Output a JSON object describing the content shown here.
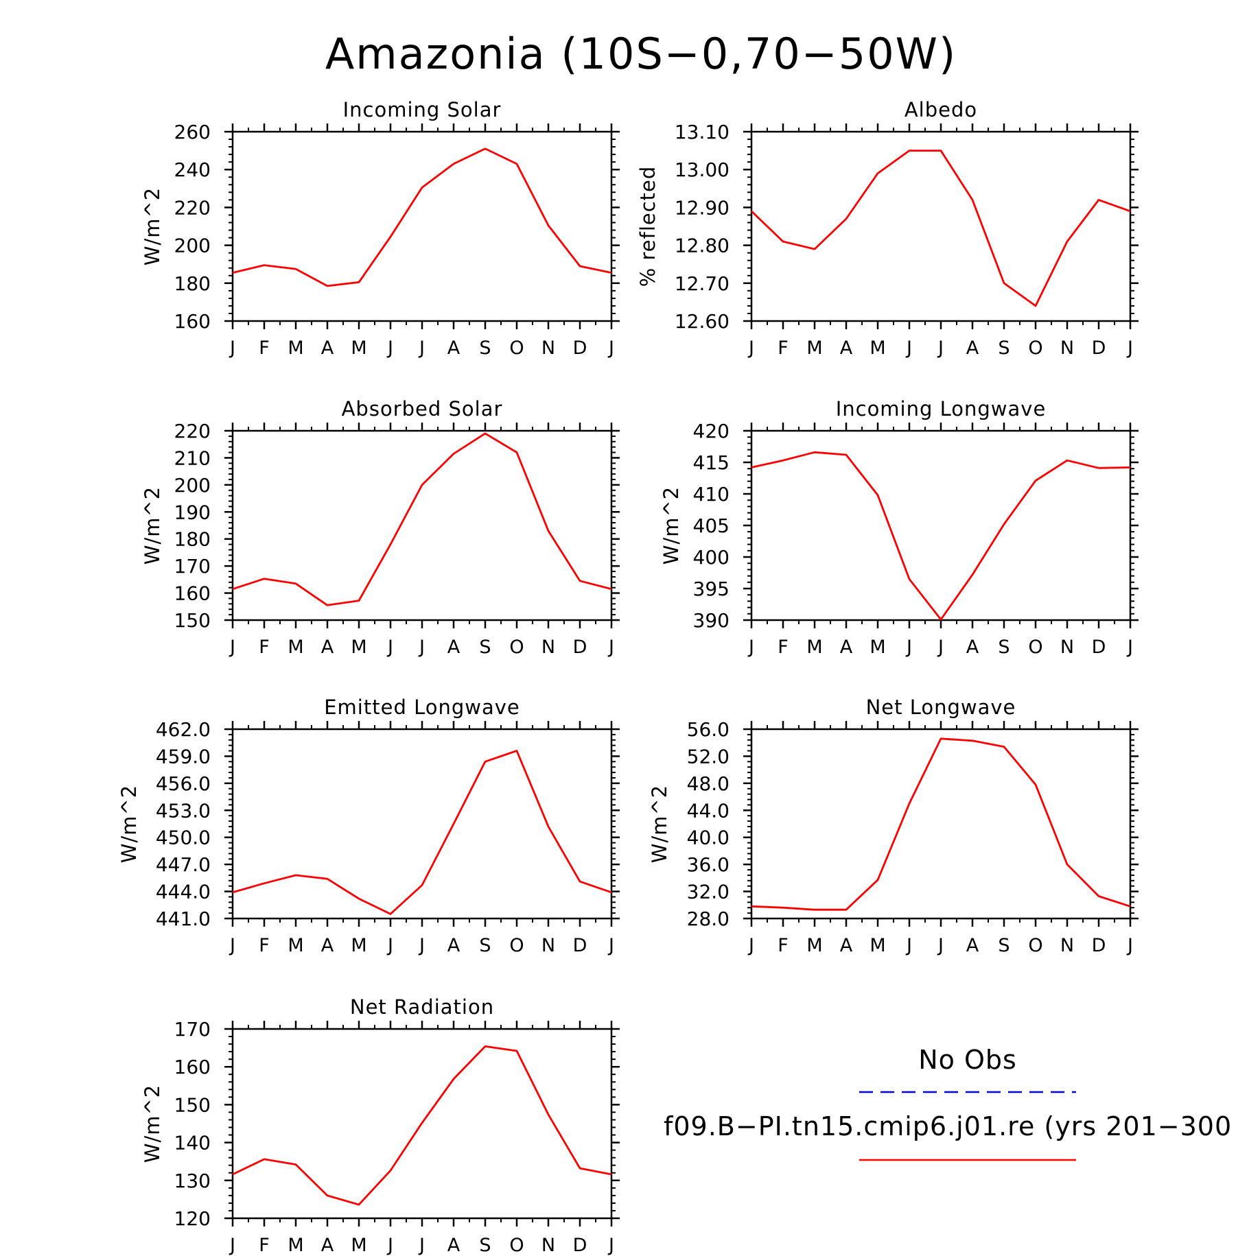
{
  "figure": {
    "title": "Amazonia (10S−0,70−50W)"
  },
  "legend": {
    "entries": [
      {
        "label": "No Obs",
        "color": "#0000ff",
        "style": "dashed"
      },
      {
        "label": "f09.B−PI.tn15.cmip6.j01.re (yrs 201−300",
        "color": "#ff0000",
        "style": "solid"
      }
    ]
  },
  "chart_data": [
    {
      "type": "line",
      "title": "Incoming Solar",
      "ylabel": "W/m^2",
      "x": [
        "J",
        "F",
        "M",
        "A",
        "M",
        "J",
        "J",
        "A",
        "S",
        "O",
        "N",
        "D",
        "J"
      ],
      "ylim": [
        160,
        260
      ],
      "yticks": [
        "160",
        "180",
        "200",
        "220",
        "240",
        "260"
      ],
      "series": [
        {
          "color": "#ff0000",
          "values": [
            185.5,
            189.5,
            187.5,
            178.5,
            180.5,
            204.5,
            230.5,
            243,
            251,
            243,
            210.5,
            189,
            185.5
          ]
        }
      ]
    },
    {
      "type": "line",
      "title": "Albedo",
      "ylabel": "% reflected",
      "x": [
        "J",
        "F",
        "M",
        "A",
        "M",
        "J",
        "J",
        "A",
        "S",
        "O",
        "N",
        "D",
        "J"
      ],
      "ylim": [
        12.6,
        13.1
      ],
      "yticks": [
        "12.60",
        "12.70",
        "12.80",
        "12.90",
        "13.00",
        "13.10"
      ],
      "series": [
        {
          "color": "#ff0000",
          "values": [
            12.89,
            12.81,
            12.79,
            12.87,
            12.99,
            13.05,
            13.05,
            12.92,
            12.7,
            12.64,
            12.81,
            12.92,
            12.89
          ]
        }
      ]
    },
    {
      "type": "line",
      "title": "Absorbed Solar",
      "ylabel": "W/m^2",
      "x": [
        "J",
        "F",
        "M",
        "A",
        "M",
        "J",
        "J",
        "A",
        "S",
        "O",
        "N",
        "D",
        "J"
      ],
      "ylim": [
        150,
        220
      ],
      "yticks": [
        "150",
        "160",
        "170",
        "180",
        "190",
        "200",
        "210",
        "220"
      ],
      "series": [
        {
          "color": "#ff0000",
          "values": [
            161.5,
            165.3,
            163.5,
            155.5,
            157.2,
            178,
            200,
            211.5,
            219,
            212,
            183,
            164.5,
            161.5
          ]
        }
      ]
    },
    {
      "type": "line",
      "title": "Incoming Longwave",
      "ylabel": "W/m^2",
      "x": [
        "J",
        "F",
        "M",
        "A",
        "M",
        "J",
        "J",
        "A",
        "S",
        "O",
        "N",
        "D",
        "J"
      ],
      "ylim": [
        390,
        420
      ],
      "yticks": [
        "390",
        "395",
        "400",
        "405",
        "410",
        "415",
        "420"
      ],
      "series": [
        {
          "color": "#ff0000",
          "values": [
            414.2,
            415.3,
            416.6,
            416.2,
            409.8,
            396.5,
            390.1,
            397.2,
            405.2,
            412.1,
            415.3,
            414.1,
            414.2
          ]
        }
      ]
    },
    {
      "type": "line",
      "title": "Emitted Longwave",
      "ylabel": "W/m^2",
      "x": [
        "J",
        "F",
        "M",
        "A",
        "M",
        "J",
        "J",
        "A",
        "S",
        "O",
        "N",
        "D",
        "J"
      ],
      "ylim": [
        441,
        462
      ],
      "yticks": [
        "441.0",
        "444.0",
        "447.0",
        "450.0",
        "453.0",
        "456.0",
        "459.0",
        "462.0"
      ],
      "series": [
        {
          "color": "#ff0000",
          "values": [
            443.9,
            444.9,
            445.8,
            445.4,
            443.2,
            441.5,
            444.7,
            451.5,
            458.4,
            459.6,
            451.2,
            445.1,
            443.9
          ]
        }
      ]
    },
    {
      "type": "line",
      "title": "Net Longwave",
      "ylabel": "W/m^2",
      "x": [
        "J",
        "F",
        "M",
        "A",
        "M",
        "J",
        "J",
        "A",
        "S",
        "O",
        "N",
        "D",
        "J"
      ],
      "ylim": [
        28,
        56
      ],
      "yticks": [
        "28.0",
        "32.0",
        "36.0",
        "40.0",
        "44.0",
        "48.0",
        "52.0",
        "56.0"
      ],
      "series": [
        {
          "color": "#ff0000",
          "values": [
            29.8,
            29.6,
            29.3,
            29.3,
            33.7,
            45,
            54.6,
            54.3,
            53.4,
            47.8,
            36,
            31.3,
            29.8
          ]
        }
      ]
    },
    {
      "type": "line",
      "title": "Net Radiation",
      "ylabel": "W/m^2",
      "x": [
        "J",
        "F",
        "M",
        "A",
        "M",
        "J",
        "J",
        "A",
        "S",
        "O",
        "N",
        "D",
        "J"
      ],
      "ylim": [
        120,
        170
      ],
      "yticks": [
        "120",
        "130",
        "140",
        "150",
        "160",
        "170"
      ],
      "series": [
        {
          "color": "#ff0000",
          "values": [
            131.6,
            135.6,
            134.2,
            126,
            123.6,
            132.6,
            145.2,
            156.8,
            165.4,
            164.2,
            147.4,
            133.2,
            131.6
          ]
        }
      ]
    }
  ]
}
